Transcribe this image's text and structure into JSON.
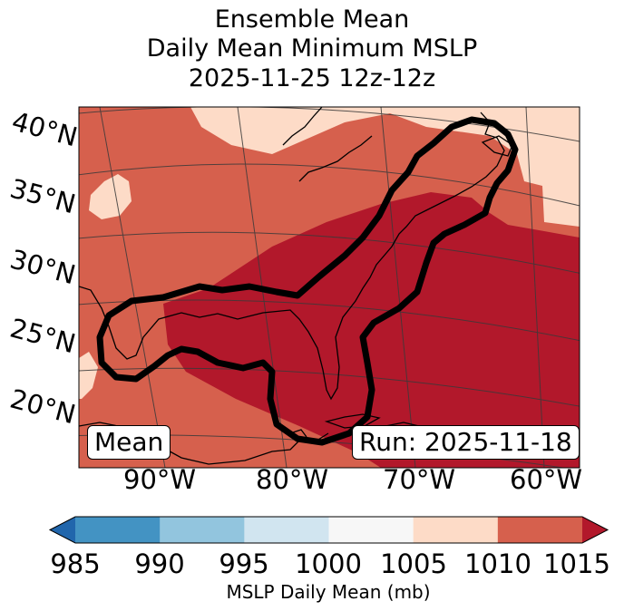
{
  "title": {
    "line1": "Ensemble Mean",
    "line2": "Daily Mean Minimum MSLP",
    "line3": "2025-11-25 12z-12z"
  },
  "map": {
    "lat_labels": [
      "40°N",
      "35°N",
      "30°N",
      "25°N",
      "20°N"
    ],
    "lon_labels": [
      "90°W",
      "80°W",
      "70°W",
      "60°W"
    ],
    "box_left": "Mean",
    "box_right": "Run: 2025-11-18",
    "colors": {
      "above_1015": "#b2182b",
      "1010_1015": "#d6604d",
      "1005_1010": "#fddbc7",
      "coast": "#000000",
      "contour": "#000000",
      "grid": "#3a3a3a"
    }
  },
  "colorbar": {
    "label": "MSLP Daily Mean (mb)",
    "ticks": [
      "985",
      "990",
      "995",
      "1000",
      "1005",
      "1010",
      "1015"
    ],
    "colors": [
      "#2166ac",
      "#4393c3",
      "#92c5de",
      "#d1e5f0",
      "#f7f7f7",
      "#fddbc7",
      "#d6604d",
      "#b2182b"
    ]
  }
}
